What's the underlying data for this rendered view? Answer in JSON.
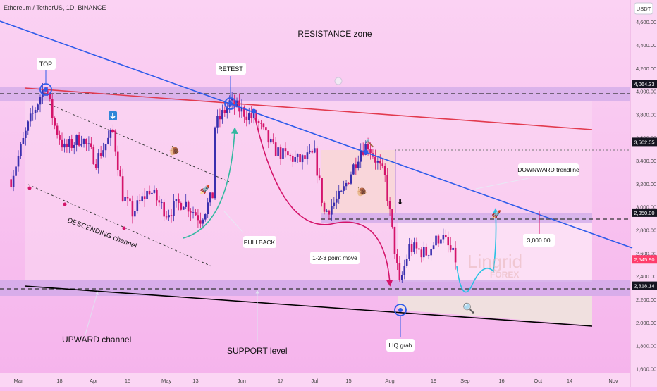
{
  "header": {
    "symbol": "Ethereum / TetherUS, 1D, BINANCE",
    "currency": "USDT"
  },
  "colors": {
    "background": "#f8bff0",
    "up_candle": "#3a2fae",
    "down_candle": "#d4146a",
    "downward_trendline": "#2e5bea",
    "red_trendline": "#e23a4e",
    "upward_channel_line": "#000000",
    "channel_dashed": "#3a3a3a",
    "zone_band": "#cda8e8",
    "price_badge": "#ff3d6b",
    "projection": "#27c2e3",
    "pullback_arrow": "#33b8a0"
  },
  "watermark": {
    "line1": "Lingrid",
    "line2": "FOREX"
  },
  "annotations": {
    "resistance_zone": "RESISTANCE zone",
    "top": "TOP",
    "retest": "RETEST",
    "downward_trendline": "DOWNWARD trendline",
    "descending_channel": "DESCENDING channel",
    "pullback": "PULLBACK",
    "one_two_three": "1-2-3 point move",
    "target": "3,000.00",
    "upward_channel": "UPWARD channel",
    "support_level": "SUPPORT level",
    "liq_grab": "LIQ grab"
  },
  "chart_data": {
    "type": "candlestick",
    "title": "Ethereum / TetherUS, 1D, BINANCE",
    "ylabel": "USDT",
    "ylim": [
      1560,
      4790
    ],
    "y_ticks": [
      4600,
      4400,
      4200,
      4000,
      3800,
      3600,
      3400,
      3200,
      3000,
      2800,
      2600,
      2400,
      2200,
      2000,
      1800,
      1600
    ],
    "x_ticks": [
      "Mar",
      "18",
      "Apr",
      "15",
      "May",
      "13",
      "Jun",
      "17",
      "Jul",
      "15",
      "Aug",
      "19",
      "Sep",
      "16",
      "Oct",
      "14",
      "Nov"
    ],
    "x_tick_dates": [
      "2024-03-01",
      "2024-03-18",
      "2024-04-01",
      "2024-04-15",
      "2024-05-01",
      "2024-05-13",
      "2024-06-01",
      "2024-06-17",
      "2024-07-01",
      "2024-07-15",
      "2024-08-01",
      "2024-08-19",
      "2024-09-01",
      "2024-09-16",
      "2024-10-01",
      "2024-10-14",
      "2024-11-01"
    ],
    "candle_range": [
      "2024-02-27",
      "2024-08-28"
    ],
    "close_path": [
      [
        "2024-02-27",
        3240
      ],
      [
        "2024-03-05",
        3700
      ],
      [
        "2024-03-12",
        4064
      ],
      [
        "2024-03-16",
        3700
      ],
      [
        "2024-03-20",
        3500
      ],
      [
        "2024-03-27",
        3600
      ],
      [
        "2024-04-02",
        3400
      ],
      [
        "2024-04-09",
        3650
      ],
      [
        "2024-04-13",
        3100
      ],
      [
        "2024-04-17",
        2950
      ],
      [
        "2024-04-24",
        3150
      ],
      [
        "2024-05-01",
        2950
      ],
      [
        "2024-05-08",
        3050
      ],
      [
        "2024-05-15",
        2900
      ],
      [
        "2024-05-20",
        3100
      ],
      [
        "2024-05-21",
        3700
      ],
      [
        "2024-05-27",
        3900
      ],
      [
        "2024-06-07",
        3750
      ],
      [
        "2024-06-14",
        3500
      ],
      [
        "2024-06-18",
        3450
      ],
      [
        "2024-06-25",
        3400
      ],
      [
        "2024-07-01",
        3450
      ],
      [
        "2024-07-05",
        2950
      ],
      [
        "2024-07-12",
        3100
      ],
      [
        "2024-07-20",
        3500
      ],
      [
        "2024-07-23",
        3540
      ],
      [
        "2024-07-30",
        3250
      ],
      [
        "2024-08-05",
        2320
      ],
      [
        "2024-08-09",
        2650
      ],
      [
        "2024-08-16",
        2600
      ],
      [
        "2024-08-22",
        2760
      ],
      [
        "2024-08-28",
        2545
      ]
    ],
    "levels": [
      {
        "label": "4,064.33",
        "value": 4064.33,
        "style": "dashed"
      },
      {
        "label": "3,562.55",
        "value": 3562.55,
        "style": "dotted"
      },
      {
        "label": "2,950.00",
        "value": 2950.0,
        "style": "dashed"
      },
      {
        "label": "2,318.14",
        "value": 2318.14,
        "style": "dashed"
      }
    ],
    "current_price": {
      "label": "2,545.90",
      "value": 2545.9
    },
    "zones": [
      {
        "name": "resistance",
        "from": 3980,
        "to": 4130
      },
      {
        "name": "mid",
        "from": 2930,
        "to": 3010
      },
      {
        "name": "support",
        "from": 2270,
        "to": 2370
      }
    ],
    "grid": false
  }
}
